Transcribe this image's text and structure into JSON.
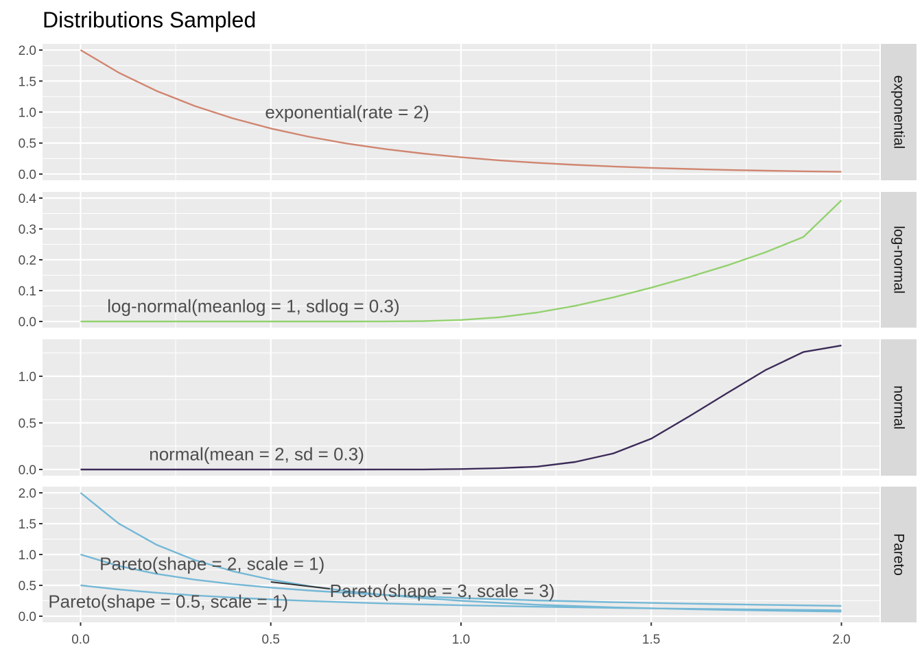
{
  "chart_data": {
    "type": "line",
    "title": "Distributions Sampled",
    "xlabel": "",
    "ylabel": "",
    "xlim": [
      0,
      2
    ],
    "x_ticks": [
      0.0,
      0.5,
      1.0,
      1.5,
      2.0
    ],
    "x_tick_labels": [
      "0.0",
      "0.5",
      "1.0",
      "1.5",
      "2.0"
    ],
    "grid": true,
    "facets": [
      {
        "strip": "exponential",
        "color": "#D08570",
        "ylim": [
          0,
          2.0
        ],
        "y_ticks": [
          0.0,
          0.5,
          1.0,
          1.5,
          2.0
        ],
        "y_tick_labels": [
          "0.0",
          "0.5",
          "1.0",
          "1.5",
          "2.0"
        ],
        "series": [
          {
            "x": [
              0,
              0.1,
              0.2,
              0.3,
              0.4,
              0.5,
              0.6,
              0.7,
              0.8,
              0.9,
              1.0,
              1.1,
              1.2,
              1.3,
              1.4,
              1.5,
              1.6,
              1.7,
              1.8,
              1.9,
              2.0
            ],
            "y": [
              2.0,
              1.637,
              1.341,
              1.098,
              0.899,
              0.736,
              0.602,
              0.493,
              0.404,
              0.331,
              0.271,
              0.222,
              0.181,
              0.149,
              0.122,
              0.1,
              0.082,
              0.067,
              0.055,
              0.045,
              0.037
            ]
          }
        ],
        "annotations": [
          {
            "text": "exponential(rate = 2)",
            "x": 0.485,
            "y": 0.9
          }
        ]
      },
      {
        "strip": "log-normal",
        "color": "#93D16F",
        "ylim": [
          0,
          0.4
        ],
        "y_ticks": [
          0.0,
          0.1,
          0.2,
          0.3,
          0.4
        ],
        "y_tick_labels": [
          "0.0",
          "0.1",
          "0.2",
          "0.3",
          "0.4"
        ],
        "series": [
          {
            "x": [
              0,
              0.1,
              0.2,
              0.3,
              0.4,
              0.5,
              0.6,
              0.7,
              0.8,
              0.9,
              1.0,
              1.1,
              1.2,
              1.3,
              1.4,
              1.5,
              1.6,
              1.7,
              1.8,
              1.9,
              2.0
            ],
            "y": [
              0,
              0,
              0,
              0,
              0,
              0,
              0,
              0,
              0.0002,
              0.0012,
              0.0049,
              0.0135,
              0.0288,
              0.0507,
              0.0781,
              0.1096,
              0.1442,
              0.1818,
              0.2242,
              0.2738,
              0.3925
            ]
          }
        ],
        "annotations": [
          {
            "text": "log-normal(meanlog = 1, sdlog = 0.3)",
            "x": 0.07,
            "y": 0.03
          }
        ]
      },
      {
        "strip": "normal",
        "color": "#3B2B58",
        "ylim": [
          0,
          1.33
        ],
        "y_ticks": [
          0.0,
          0.5,
          1.0
        ],
        "y_tick_labels": [
          "0.0",
          "0.5",
          "1.0"
        ],
        "series": [
          {
            "x": [
              0,
              0.1,
              0.2,
              0.3,
              0.4,
              0.5,
              0.6,
              0.7,
              0.8,
              0.9,
              1.0,
              1.1,
              1.2,
              1.3,
              1.4,
              1.5,
              1.6,
              1.7,
              1.8,
              1.9,
              2.0
            ],
            "y": [
              0,
              0,
              0,
              0,
              0,
              0,
              0,
              0,
              0.0001,
              0.0007,
              0.0051,
              0.0136,
              0.0308,
              0.0804,
              0.1719,
              0.3305,
              0.57,
              0.82,
              1.065,
              1.26,
              1.3298
            ]
          }
        ],
        "annotations": [
          {
            "text": "normal(mean = 2, sd = 0.3)",
            "x": 0.18,
            "y": 0.1
          }
        ]
      },
      {
        "strip": "Pareto",
        "color": "#74B8D6",
        "ylim": [
          0,
          2.0
        ],
        "y_ticks": [
          0.0,
          0.5,
          1.0,
          1.5,
          2.0
        ],
        "y_tick_labels": [
          "0.0",
          "0.5",
          "1.0",
          "1.5",
          "2.0"
        ],
        "series": [
          {
            "x": [
              0,
              0.1,
              0.2,
              0.3,
              0.4,
              0.5,
              0.6,
              0.7,
              0.8,
              0.9,
              1.0,
              1.2,
              1.4,
              1.6,
              1.8,
              2.0
            ],
            "y": [
              2.0,
              1.503,
              1.157,
              0.91,
              0.729,
              0.593,
              0.488,
              0.408,
              0.343,
              0.292,
              0.25,
              0.186,
              0.143,
              0.113,
              0.091,
              0.074
            ]
          },
          {
            "x": [
              0,
              0.1,
              0.2,
              0.3,
              0.4,
              0.5,
              0.6,
              0.7,
              0.8,
              0.9,
              1.0,
              1.2,
              1.4,
              1.6,
              1.8,
              2.0
            ],
            "y": [
              1.0,
              0.814,
              0.686,
              0.592,
              0.52,
              0.463,
              0.417,
              0.378,
              0.346,
              0.318,
              0.294,
              0.256,
              0.227,
              0.203,
              0.184,
              0.167
            ]
          },
          {
            "x": [
              0,
              0.1,
              0.2,
              0.3,
              0.4,
              0.5,
              0.6,
              0.7,
              0.8,
              0.9,
              1.0,
              1.2,
              1.4,
              1.6,
              1.8,
              2.0
            ],
            "y": [
              0.5,
              0.433,
              0.38,
              0.337,
              0.302,
              0.272,
              0.247,
              0.226,
              0.207,
              0.191,
              0.177,
              0.153,
              0.135,
              0.12,
              0.108,
              0.096
            ]
          }
        ],
        "annotations": [
          {
            "text": "Pareto(shape = 2, scale = 1)",
            "x": 0.05,
            "y": 0.75
          },
          {
            "text": "Pareto(shape = 3, scale = 3)",
            "x": 0.655,
            "y": 0.31
          },
          {
            "text": "Pareto(shape = 0.5, scale = 1)",
            "x": -0.085,
            "y": 0.14
          }
        ],
        "segments": [
          {
            "x1": 0.5,
            "y1": 0.555,
            "x2": 0.655,
            "y2": 0.445
          }
        ]
      }
    ]
  }
}
